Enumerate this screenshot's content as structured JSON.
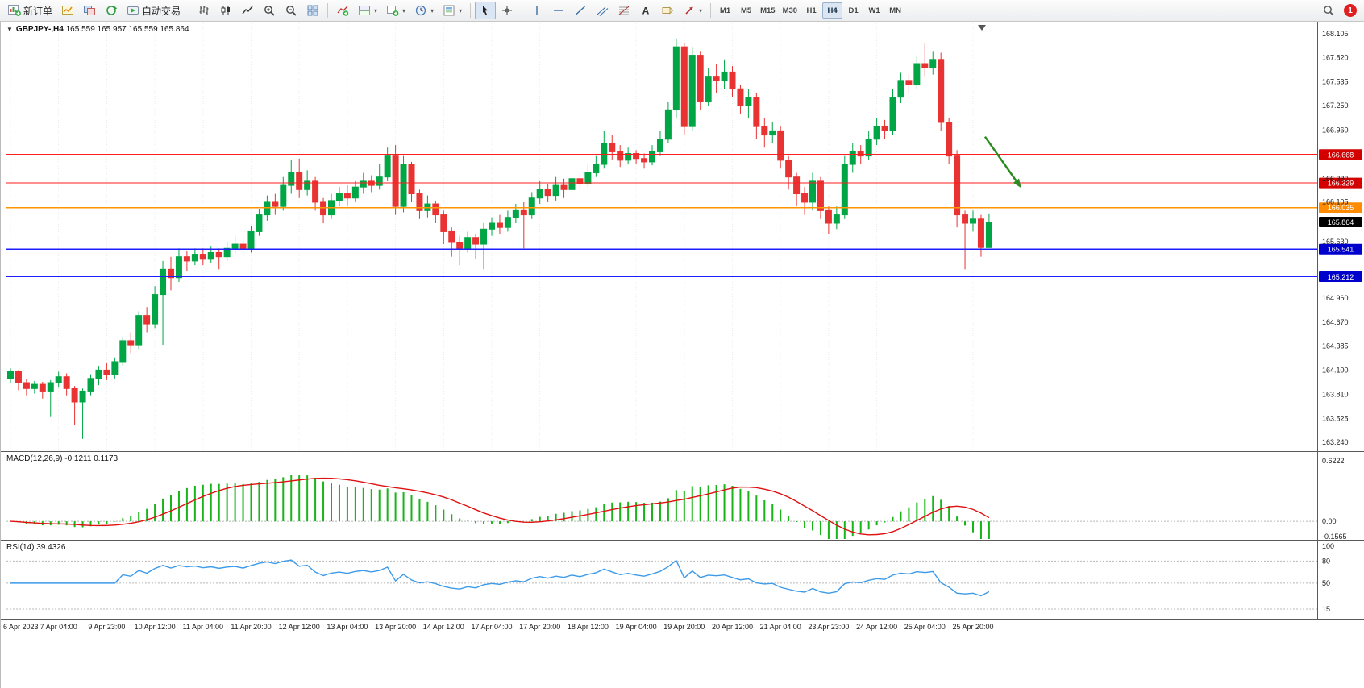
{
  "toolbar": {
    "new_order_label": "新订单",
    "autotrade_label": "自动交易",
    "timeframes": [
      "M1",
      "M5",
      "M15",
      "M30",
      "H1",
      "H4",
      "D1",
      "W1",
      "MN"
    ],
    "active_timeframe": "H4",
    "notification_count": "1"
  },
  "header": {
    "symbol_period": "GBPJPY-,H4",
    "ohlc": "165.559 165.957 165.559 165.864"
  },
  "indicators": {
    "macd_label": "MACD(12,26,9)",
    "macd_main": "-0.1211",
    "macd_signal": "0.1173",
    "rsi_label": "RSI(14)",
    "rsi_value": "39.4326"
  },
  "chart_data": {
    "type": "candlestick",
    "symbol": "GBPJPY-",
    "period": "H4",
    "ylim": [
      163.24,
      168.105
    ],
    "price_axis_labels": [
      "168.105",
      "167.820",
      "167.535",
      "167.250",
      "166.960",
      "166.380",
      "166.105",
      "165.630",
      "164.960",
      "164.670",
      "164.385",
      "164.100",
      "163.810",
      "163.525",
      "163.240"
    ],
    "time_labels": [
      "6 Apr 2023",
      "7 Apr 04:00",
      "9 Apr 23:00",
      "10 Apr 12:00",
      "11 Apr 04:00",
      "11 Apr 20:00",
      "12 Apr 12:00",
      "13 Apr 04:00",
      "13 Apr 20:00",
      "14 Apr 12:00",
      "17 Apr 04:00",
      "17 Apr 20:00",
      "18 Apr 12:00",
      "19 Apr 04:00",
      "19 Apr 20:00",
      "20 Apr 12:00",
      "21 Apr 04:00",
      "23 Apr 23:00",
      "24 Apr 12:00",
      "25 Apr 04:00",
      "25 Apr 20:00"
    ],
    "bars_per_label": 6,
    "candles": [
      [
        164.0,
        164.12,
        163.95,
        164.08
      ],
      [
        164.08,
        164.1,
        163.86,
        163.95
      ],
      [
        163.95,
        163.99,
        163.8,
        163.88
      ],
      [
        163.88,
        163.97,
        163.82,
        163.93
      ],
      [
        163.93,
        163.96,
        163.76,
        163.85
      ],
      [
        163.85,
        163.98,
        163.55,
        163.95
      ],
      [
        163.95,
        164.08,
        163.9,
        164.02
      ],
      [
        164.02,
        164.06,
        163.8,
        163.88
      ],
      [
        163.88,
        163.91,
        163.45,
        163.72
      ],
      [
        163.72,
        163.88,
        163.28,
        163.85
      ],
      [
        163.85,
        164.05,
        163.8,
        164.0
      ],
      [
        164.0,
        164.15,
        163.92,
        164.1
      ],
      [
        164.1,
        164.18,
        163.98,
        164.05
      ],
      [
        164.05,
        164.25,
        164.0,
        164.2
      ],
      [
        164.2,
        164.5,
        164.15,
        164.45
      ],
      [
        164.45,
        164.55,
        164.3,
        164.4
      ],
      [
        164.4,
        164.8,
        164.35,
        164.75
      ],
      [
        164.75,
        164.85,
        164.55,
        164.65
      ],
      [
        164.65,
        165.1,
        164.6,
        165.0
      ],
      [
        165.0,
        165.4,
        164.4,
        165.3
      ],
      [
        165.3,
        165.45,
        165.05,
        165.2
      ],
      [
        165.2,
        165.55,
        165.15,
        165.45
      ],
      [
        165.45,
        165.52,
        165.28,
        165.4
      ],
      [
        165.4,
        165.55,
        165.35,
        165.48
      ],
      [
        165.48,
        165.55,
        165.35,
        165.42
      ],
      [
        165.42,
        165.58,
        165.38,
        165.5
      ],
      [
        165.5,
        165.55,
        165.3,
        165.45
      ],
      [
        165.45,
        165.62,
        165.4,
        165.55
      ],
      [
        165.55,
        165.7,
        165.48,
        165.6
      ],
      [
        165.6,
        165.68,
        165.45,
        165.55
      ],
      [
        165.55,
        165.82,
        165.5,
        165.75
      ],
      [
        165.75,
        166.02,
        165.7,
        165.95
      ],
      [
        165.95,
        166.18,
        165.88,
        166.1
      ],
      [
        166.1,
        166.2,
        165.95,
        166.05
      ],
      [
        166.05,
        166.4,
        166.0,
        166.3
      ],
      [
        166.3,
        166.6,
        166.2,
        166.45
      ],
      [
        166.45,
        166.62,
        166.15,
        166.25
      ],
      [
        166.25,
        166.48,
        166.18,
        166.35
      ],
      [
        166.35,
        166.4,
        166.0,
        166.1
      ],
      [
        166.1,
        166.15,
        165.85,
        165.95
      ],
      [
        165.95,
        166.2,
        165.9,
        166.12
      ],
      [
        166.12,
        166.28,
        166.05,
        166.2
      ],
      [
        166.2,
        166.3,
        166.05,
        166.15
      ],
      [
        166.15,
        166.35,
        166.1,
        166.28
      ],
      [
        166.28,
        166.45,
        166.2,
        166.35
      ],
      [
        166.35,
        166.42,
        166.22,
        166.3
      ],
      [
        166.3,
        166.55,
        166.25,
        166.4
      ],
      [
        166.4,
        166.75,
        166.35,
        166.65
      ],
      [
        166.65,
        166.78,
        165.95,
        166.05
      ],
      [
        166.05,
        166.65,
        165.98,
        166.55
      ],
      [
        166.55,
        166.58,
        166.1,
        166.2
      ],
      [
        166.2,
        166.25,
        165.9,
        166.0
      ],
      [
        166.0,
        166.18,
        165.92,
        166.08
      ],
      [
        166.08,
        166.12,
        165.85,
        165.95
      ],
      [
        165.95,
        166.0,
        165.6,
        165.75
      ],
      [
        165.75,
        165.8,
        165.45,
        165.62
      ],
      [
        165.62,
        165.7,
        165.35,
        165.55
      ],
      [
        165.55,
        165.75,
        165.5,
        165.68
      ],
      [
        165.68,
        165.72,
        165.42,
        165.6
      ],
      [
        165.6,
        165.85,
        165.3,
        165.78
      ],
      [
        165.78,
        165.92,
        165.7,
        165.85
      ],
      [
        165.85,
        165.95,
        165.72,
        165.8
      ],
      [
        165.8,
        166.0,
        165.75,
        165.92
      ],
      [
        165.92,
        166.08,
        165.85,
        166.0
      ],
      [
        166.0,
        166.1,
        165.55,
        165.95
      ],
      [
        165.95,
        166.22,
        165.9,
        166.15
      ],
      [
        166.15,
        166.35,
        166.08,
        166.25
      ],
      [
        166.25,
        166.32,
        166.1,
        166.18
      ],
      [
        166.18,
        166.4,
        166.12,
        166.3
      ],
      [
        166.3,
        166.38,
        166.15,
        166.25
      ],
      [
        166.25,
        166.48,
        166.2,
        166.38
      ],
      [
        166.38,
        166.45,
        166.25,
        166.32
      ],
      [
        166.32,
        166.55,
        166.28,
        166.45
      ],
      [
        166.45,
        166.65,
        166.4,
        166.55
      ],
      [
        166.55,
        166.95,
        166.5,
        166.8
      ],
      [
        166.8,
        166.9,
        166.6,
        166.7
      ],
      [
        166.7,
        166.78,
        166.52,
        166.6
      ],
      [
        166.6,
        166.75,
        166.55,
        166.68
      ],
      [
        166.68,
        166.72,
        166.55,
        166.62
      ],
      [
        166.62,
        166.68,
        166.5,
        166.58
      ],
      [
        166.58,
        166.78,
        166.54,
        166.7
      ],
      [
        166.7,
        166.95,
        166.65,
        166.85
      ],
      [
        166.85,
        167.3,
        166.8,
        167.2
      ],
      [
        167.2,
        168.05,
        167.1,
        167.95
      ],
      [
        167.95,
        168.0,
        166.9,
        167.0
      ],
      [
        167.0,
        167.95,
        166.95,
        167.85
      ],
      [
        167.85,
        167.9,
        167.2,
        167.3
      ],
      [
        167.3,
        167.7,
        167.25,
        167.6
      ],
      [
        167.6,
        167.75,
        167.4,
        167.55
      ],
      [
        167.55,
        167.8,
        167.45,
        167.65
      ],
      [
        167.65,
        167.72,
        167.35,
        167.45
      ],
      [
        167.45,
        167.5,
        167.15,
        167.25
      ],
      [
        167.25,
        167.45,
        167.1,
        167.35
      ],
      [
        167.35,
        167.4,
        166.85,
        167.0
      ],
      [
        167.0,
        167.1,
        166.75,
        166.9
      ],
      [
        166.9,
        167.05,
        166.8,
        166.95
      ],
      [
        166.95,
        167.0,
        166.5,
        166.6
      ],
      [
        166.6,
        166.65,
        166.25,
        166.4
      ],
      [
        166.4,
        166.45,
        166.05,
        166.2
      ],
      [
        166.2,
        166.28,
        165.95,
        166.1
      ],
      [
        166.1,
        166.45,
        166.0,
        166.35
      ],
      [
        166.35,
        166.4,
        165.9,
        166.0
      ],
      [
        166.0,
        166.05,
        165.72,
        165.85
      ],
      [
        165.85,
        166.05,
        165.78,
        165.95
      ],
      [
        165.95,
        166.65,
        165.9,
        166.55
      ],
      [
        166.55,
        166.8,
        166.45,
        166.7
      ],
      [
        166.7,
        166.78,
        166.55,
        166.65
      ],
      [
        166.65,
        166.95,
        166.6,
        166.85
      ],
      [
        166.85,
        167.1,
        166.78,
        167.0
      ],
      [
        167.0,
        167.08,
        166.85,
        166.95
      ],
      [
        166.95,
        167.45,
        166.9,
        167.35
      ],
      [
        167.35,
        167.65,
        167.28,
        167.55
      ],
      [
        167.55,
        167.62,
        167.4,
        167.5
      ],
      [
        167.5,
        167.85,
        167.45,
        167.75
      ],
      [
        167.75,
        168.0,
        167.6,
        167.7
      ],
      [
        167.7,
        167.9,
        167.62,
        167.8
      ],
      [
        167.8,
        167.88,
        166.95,
        167.05
      ],
      [
        167.05,
        167.1,
        166.55,
        166.65
      ],
      [
        166.65,
        166.72,
        165.8,
        165.95
      ],
      [
        165.95,
        166.0,
        165.3,
        165.85
      ],
      [
        165.85,
        166.0,
        165.75,
        165.9
      ],
      [
        165.9,
        165.95,
        165.45,
        165.56
      ],
      [
        165.559,
        165.957,
        165.559,
        165.864
      ]
    ],
    "hlines": [
      {
        "price": 166.668,
        "label": "166.668",
        "color": "#ff1e1e",
        "badge_color": "#d40000"
      },
      {
        "price": 166.329,
        "label": "166.329",
        "color": "#ff1e1e",
        "badge_color": "#d40000"
      },
      {
        "price": 166.035,
        "label": "166.035",
        "color": "#ff9500",
        "badge_color": "#ff8c00"
      },
      {
        "price": 165.541,
        "label": "165.541",
        "color": "#1e1eff",
        "badge_color": "#0000cd"
      },
      {
        "price": 165.212,
        "label": "165.212",
        "color": "#1e1eff",
        "badge_color": "#0000cd"
      }
    ],
    "current_price": {
      "price": 165.864,
      "label": "165.864",
      "line_color": "#3c3c3c",
      "badge_color": "#000000"
    },
    "arrow_annotation": {
      "from_bar": 121.5,
      "from_price": 166.88,
      "to_bar": 126,
      "to_price": 166.27,
      "color": "#2e8b22"
    },
    "colors": {
      "bull": "#00a645",
      "bear": "#e93232",
      "grid": "#ececec",
      "axis_text": "#1a1a1a"
    },
    "macd": {
      "params": [
        12,
        26,
        9
      ],
      "axis_labels": [
        "0.6222",
        "0.00",
        "-0.1565"
      ],
      "ylim": [
        -0.1565,
        0.6222
      ],
      "hist_color": "#17b517",
      "signal_color": "#e01010",
      "current": [
        -0.1211,
        0.1173
      ]
    },
    "rsi": {
      "period": 14,
      "axis_labels": [
        "100",
        "80",
        "50",
        "15"
      ],
      "levels": [
        80,
        50,
        15
      ],
      "line_color": "#3d9be9",
      "current": 39.4326
    }
  }
}
